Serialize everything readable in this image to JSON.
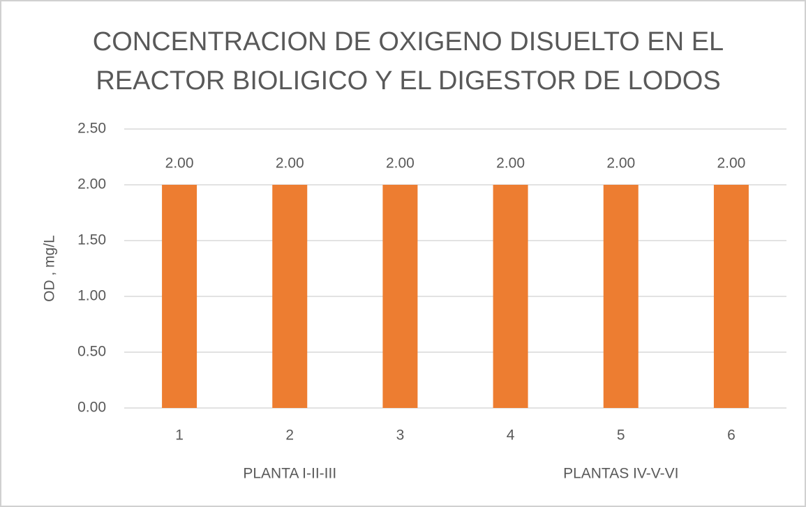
{
  "chart_data": {
    "type": "bar",
    "title": [
      "CONCENTRACION DE OXIGENO DISUELTO EN EL",
      "REACTOR BIOLIGICO Y EL DIGESTOR DE LODOS"
    ],
    "y_label": "OD , mg/L",
    "categories": [
      "1",
      "2",
      "3",
      "4",
      "5",
      "6"
    ],
    "groups": [
      "PLANTA I-II-III",
      "PLANTAS IV-V-VI"
    ],
    "values": [
      2,
      2,
      2,
      2,
      2,
      2
    ],
    "value_labels": [
      "2.00",
      "2.00",
      "2.00",
      "2.00",
      "2.00",
      "2.00"
    ],
    "color": "#ed7d31",
    "ylim": [
      0,
      2.5
    ],
    "yticks": [
      {
        "value": 0,
        "label": "0.00"
      },
      {
        "value": 0.5,
        "label": "0.50"
      },
      {
        "value": 1,
        "label": "1.00"
      },
      {
        "value": 1.5,
        "label": "1.50"
      },
      {
        "value": 2,
        "label": "2.00"
      },
      {
        "value": 2.5,
        "label": "2.50"
      }
    ],
    "grid": true
  }
}
